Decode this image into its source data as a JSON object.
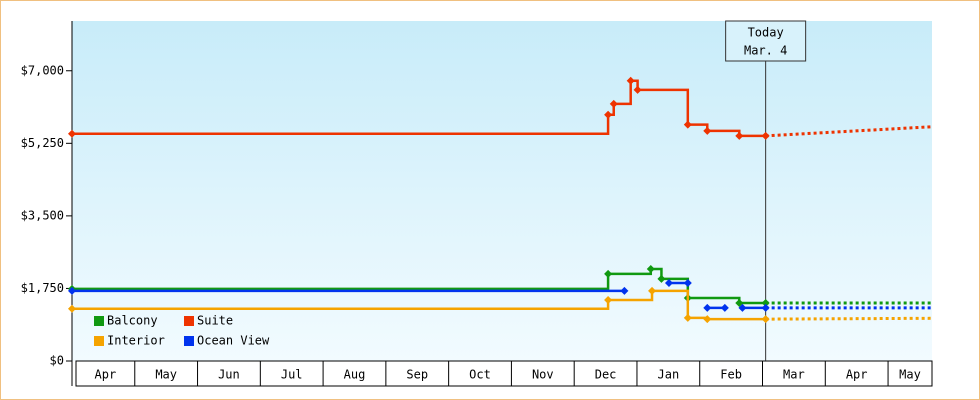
{
  "chart_data": {
    "type": "step-line",
    "categories": [
      "Apr",
      "May",
      "Jun",
      "Jul",
      "Aug",
      "Sep",
      "Oct",
      "Nov",
      "Dec",
      "Jan",
      "Feb",
      "Mar",
      "Apr",
      "May"
    ],
    "xlim": [
      0,
      13.7
    ],
    "ylim": [
      0,
      8200
    ],
    "yticks": [
      {
        "value": 0,
        "label": "$0"
      },
      {
        "value": 1750,
        "label": "$1,750"
      },
      {
        "value": 3500,
        "label": "$3,500"
      },
      {
        "value": 5250,
        "label": "$5,250"
      },
      {
        "value": 7000,
        "label": "$7,000"
      }
    ],
    "series": [
      {
        "name": "Balcony",
        "color": "#119911",
        "x": [
          0,
          8.54,
          9.22,
          9.39,
          9.81,
          10.63,
          11.05
        ],
        "values": [
          1740,
          2100,
          2220,
          1980,
          1520,
          1400,
          1400
        ],
        "projection_x": [
          11.05,
          13.7
        ],
        "projection": [
          1400,
          1400
        ]
      },
      {
        "name": "Suite",
        "color": "#ee3300",
        "x": [
          0,
          8.54,
          8.63,
          8.9,
          9.01,
          9.81,
          10.12,
          10.63,
          11.05
        ],
        "values": [
          5480,
          5940,
          6200,
          6760,
          6540,
          5700,
          5550,
          5430,
          5430
        ],
        "projection_x": [
          11.05,
          13.7
        ],
        "projection": [
          5430,
          5650
        ]
      },
      {
        "name": "Interior",
        "color": "#f5a300",
        "x": [
          0,
          8.54,
          9.24,
          9.81,
          10.12,
          11.05
        ],
        "values": [
          1260,
          1470,
          1690,
          1040,
          1010,
          1010
        ],
        "projection_x": [
          11.05,
          13.7
        ],
        "projection": [
          1010,
          1030
        ]
      },
      {
        "name": "Ocean View",
        "color": "#0033ee",
        "x": [
          0,
          8.8,
          null,
          9.51,
          9.81,
          null,
          10.12,
          10.4,
          null,
          10.68,
          11.05
        ],
        "values": [
          1690,
          1690,
          null,
          1880,
          1880,
          null,
          1280,
          1280,
          null,
          1280,
          1280
        ],
        "projection_x": [
          11.05,
          13.7
        ],
        "projection": [
          1280,
          1280
        ]
      }
    ],
    "annotation": {
      "x": 11.05,
      "lines": [
        "Today",
        "Mar. 4"
      ]
    }
  }
}
